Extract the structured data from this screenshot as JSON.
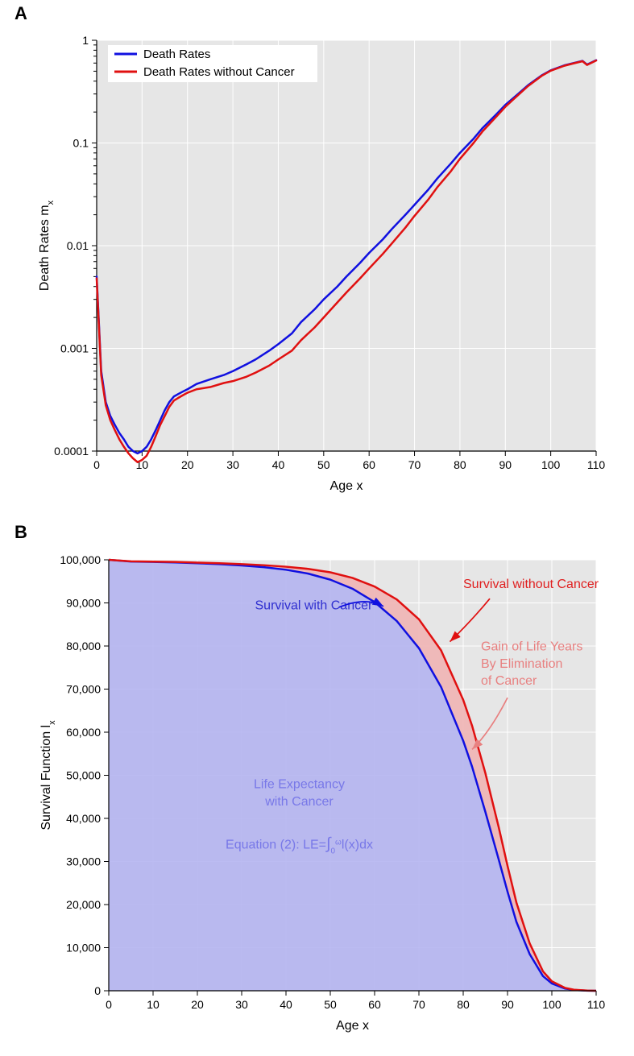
{
  "panelA": {
    "label": "A",
    "type": "line",
    "background_color": "#e6e6e6",
    "grid_color": "#ffffff",
    "x": {
      "label": "Age x",
      "min": 0,
      "max": 110,
      "ticks": [
        0,
        10,
        20,
        30,
        40,
        50,
        60,
        70,
        80,
        90,
        100,
        110
      ]
    },
    "y": {
      "label": "Death Rates m",
      "label_subscript": "x",
      "scale": "log",
      "min_exp": -4,
      "max_exp": 0,
      "ticks_exp": [
        -4,
        -3,
        -2,
        -1,
        0
      ],
      "tick_labels": [
        "0.0001",
        "0.001",
        "0.01",
        "0.1",
        "1"
      ]
    },
    "legend": {
      "items": [
        {
          "label": "Death Rates",
          "color": "#1010e0"
        },
        {
          "label": "Death Rates without Cancer",
          "color": "#e01010"
        }
      ]
    },
    "series": [
      {
        "name": "Death Rates",
        "color": "#1010e0",
        "line_width": 2.5,
        "data": [
          [
            0,
            0.005
          ],
          [
            1,
            0.0006
          ],
          [
            2,
            0.0003
          ],
          [
            3,
            0.00022
          ],
          [
            4,
            0.00018
          ],
          [
            5,
            0.00015
          ],
          [
            6,
            0.00013
          ],
          [
            7,
            0.00011
          ],
          [
            8,
            0.0001
          ],
          [
            9,
            9.5e-05
          ],
          [
            10,
            0.0001
          ],
          [
            11,
            0.00011
          ],
          [
            12,
            0.00013
          ],
          [
            13,
            0.00016
          ],
          [
            14,
            0.0002
          ],
          [
            15,
            0.00025
          ],
          [
            16,
            0.0003
          ],
          [
            17,
            0.00034
          ],
          [
            18,
            0.00036
          ],
          [
            19,
            0.00038
          ],
          [
            20,
            0.0004
          ],
          [
            22,
            0.00045
          ],
          [
            25,
            0.0005
          ],
          [
            28,
            0.00055
          ],
          [
            30,
            0.0006
          ],
          [
            33,
            0.0007
          ],
          [
            35,
            0.00078
          ],
          [
            38,
            0.00095
          ],
          [
            40,
            0.0011
          ],
          [
            43,
            0.0014
          ],
          [
            45,
            0.0018
          ],
          [
            48,
            0.0024
          ],
          [
            50,
            0.003
          ],
          [
            53,
            0.004
          ],
          [
            55,
            0.005
          ],
          [
            58,
            0.0068
          ],
          [
            60,
            0.0085
          ],
          [
            63,
            0.0115
          ],
          [
            65,
            0.0145
          ],
          [
            68,
            0.02
          ],
          [
            70,
            0.025
          ],
          [
            73,
            0.035
          ],
          [
            75,
            0.045
          ],
          [
            78,
            0.063
          ],
          [
            80,
            0.08
          ],
          [
            83,
            0.11
          ],
          [
            85,
            0.14
          ],
          [
            88,
            0.19
          ],
          [
            90,
            0.235
          ],
          [
            93,
            0.305
          ],
          [
            95,
            0.365
          ],
          [
            98,
            0.455
          ],
          [
            100,
            0.51
          ],
          [
            103,
            0.57
          ],
          [
            105,
            0.6
          ],
          [
            107,
            0.63
          ],
          [
            108,
            0.58
          ],
          [
            110,
            0.64
          ]
        ]
      },
      {
        "name": "Death Rates without Cancer",
        "color": "#e01010",
        "line_width": 2.5,
        "data": [
          [
            0,
            0.0048
          ],
          [
            1,
            0.00055
          ],
          [
            2,
            0.00028
          ],
          [
            3,
            0.0002
          ],
          [
            4,
            0.00016
          ],
          [
            5,
            0.00013
          ],
          [
            6,
            0.00011
          ],
          [
            7,
            9.5e-05
          ],
          [
            8,
            8.5e-05
          ],
          [
            9,
            7.8e-05
          ],
          [
            10,
            8.2e-05
          ],
          [
            11,
            9e-05
          ],
          [
            12,
            0.00011
          ],
          [
            13,
            0.00014
          ],
          [
            14,
            0.00018
          ],
          [
            15,
            0.00022
          ],
          [
            16,
            0.00027
          ],
          [
            17,
            0.00031
          ],
          [
            18,
            0.00033
          ],
          [
            19,
            0.00035
          ],
          [
            20,
            0.00037
          ],
          [
            22,
            0.0004
          ],
          [
            25,
            0.00042
          ],
          [
            28,
            0.00046
          ],
          [
            30,
            0.00048
          ],
          [
            33,
            0.00053
          ],
          [
            35,
            0.00058
          ],
          [
            38,
            0.00068
          ],
          [
            40,
            0.00078
          ],
          [
            43,
            0.00095
          ],
          [
            45,
            0.0012
          ],
          [
            48,
            0.0016
          ],
          [
            50,
            0.002
          ],
          [
            53,
            0.0028
          ],
          [
            55,
            0.0035
          ],
          [
            58,
            0.0048
          ],
          [
            60,
            0.006
          ],
          [
            63,
            0.0083
          ],
          [
            65,
            0.0105
          ],
          [
            68,
            0.015
          ],
          [
            70,
            0.0195
          ],
          [
            73,
            0.028
          ],
          [
            75,
            0.037
          ],
          [
            78,
            0.053
          ],
          [
            80,
            0.07
          ],
          [
            83,
            0.1
          ],
          [
            85,
            0.13
          ],
          [
            88,
            0.18
          ],
          [
            90,
            0.225
          ],
          [
            93,
            0.298
          ],
          [
            95,
            0.358
          ],
          [
            98,
            0.45
          ],
          [
            100,
            0.505
          ],
          [
            103,
            0.565
          ],
          [
            105,
            0.595
          ],
          [
            107,
            0.625
          ],
          [
            108,
            0.575
          ],
          [
            110,
            0.635
          ]
        ]
      }
    ]
  },
  "panelB": {
    "label": "B",
    "type": "area",
    "background_color": "#e6e6e6",
    "grid_color": "#ffffff",
    "x": {
      "label": "Age x",
      "min": 0,
      "max": 110,
      "ticks": [
        0,
        10,
        20,
        30,
        40,
        50,
        60,
        70,
        80,
        90,
        100,
        110
      ]
    },
    "y": {
      "label": "Survival Function l",
      "label_subscript": "x",
      "min": 0,
      "max": 100000,
      "ticks": [
        0,
        10000,
        20000,
        30000,
        40000,
        50000,
        60000,
        70000,
        80000,
        90000,
        100000
      ],
      "tick_labels": [
        "0",
        "10,000",
        "20,000",
        "30,000",
        "40,000",
        "50,000",
        "60,000",
        "70,000",
        "80,000",
        "90,000",
        "100,000"
      ]
    },
    "fill_blue": "#b0b0f0",
    "fill_pink": "#f0b0b0",
    "series": [
      {
        "name": "Survival with Cancer",
        "color": "#1010e0",
        "line_width": 2.5,
        "data": [
          [
            0,
            100000
          ],
          [
            5,
            99600
          ],
          [
            10,
            99500
          ],
          [
            15,
            99400
          ],
          [
            20,
            99200
          ],
          [
            25,
            99000
          ],
          [
            30,
            98700
          ],
          [
            35,
            98300
          ],
          [
            40,
            97700
          ],
          [
            45,
            96800
          ],
          [
            50,
            95400
          ],
          [
            55,
            93300
          ],
          [
            60,
            90200
          ],
          [
            65,
            85800
          ],
          [
            70,
            79500
          ],
          [
            75,
            70500
          ],
          [
            80,
            58000
          ],
          [
            82,
            52000
          ],
          [
            85,
            41500
          ],
          [
            88,
            30500
          ],
          [
            90,
            23000
          ],
          [
            92,
            16000
          ],
          [
            95,
            8500
          ],
          [
            98,
            3400
          ],
          [
            100,
            1700
          ],
          [
            103,
            500
          ],
          [
            105,
            180
          ],
          [
            108,
            30
          ],
          [
            110,
            0
          ]
        ]
      },
      {
        "name": "Survival without Cancer",
        "color": "#e01010",
        "line_width": 2.5,
        "data": [
          [
            0,
            100000
          ],
          [
            5,
            99650
          ],
          [
            10,
            99580
          ],
          [
            15,
            99500
          ],
          [
            20,
            99350
          ],
          [
            25,
            99200
          ],
          [
            30,
            99000
          ],
          [
            35,
            98750
          ],
          [
            40,
            98400
          ],
          [
            45,
            97900
          ],
          [
            50,
            97100
          ],
          [
            55,
            95800
          ],
          [
            60,
            93800
          ],
          [
            65,
            90800
          ],
          [
            70,
            86200
          ],
          [
            75,
            79000
          ],
          [
            80,
            67500
          ],
          [
            82,
            61500
          ],
          [
            85,
            50500
          ],
          [
            88,
            38000
          ],
          [
            90,
            29000
          ],
          [
            92,
            20500
          ],
          [
            95,
            11000
          ],
          [
            98,
            4500
          ],
          [
            100,
            2200
          ],
          [
            103,
            650
          ],
          [
            105,
            230
          ],
          [
            108,
            40
          ],
          [
            110,
            0
          ]
        ]
      }
    ],
    "annotations": {
      "survival_with": "Survival with Cancer",
      "survival_without": "Survival without Cancer",
      "gain_line1": "Gain of Life Years",
      "gain_line2": "By Elimination",
      "gain_line3": "of Cancer",
      "le_line1": "Life Expectancy",
      "le_line2": "with Cancer",
      "eq_prefix": "Equation (2): LE=",
      "eq_int": "∫",
      "eq_sub": "0",
      "eq_sup": "ω",
      "eq_body": "l(x)dx"
    }
  }
}
